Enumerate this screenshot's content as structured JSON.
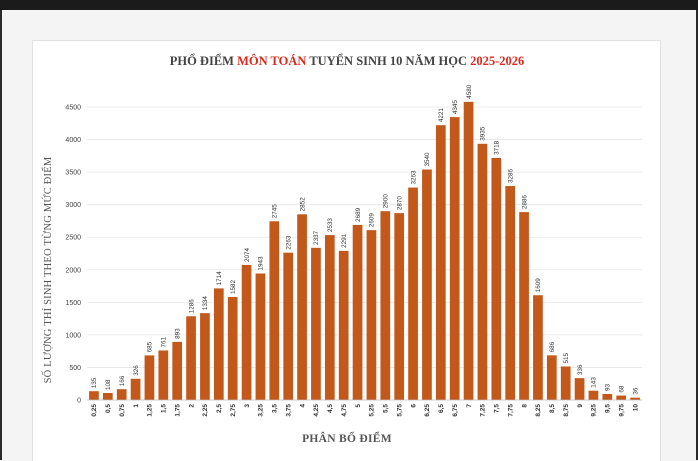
{
  "chart_data": {
    "type": "bar",
    "title_parts": [
      "PHỔ ĐIỂM ",
      "MÔN TOÁN",
      " TUYỂN SINH 10 NĂM HỌC ",
      "2025-2026"
    ],
    "xlabel": "PHÂN BỔ ĐIỂM",
    "ylabel": "SỐ LƯỢNG THÍ SINH THEO TỪNG MỨC ĐIỂM",
    "ylim": [
      0,
      4700
    ],
    "yticks": [
      0,
      500,
      1000,
      1500,
      2000,
      2500,
      3000,
      3500,
      4000,
      4500
    ],
    "grid": true,
    "categories": [
      "0,25",
      "0,5",
      "0,75",
      "1",
      "1,25",
      "1,5",
      "1,75",
      "2",
      "2,25",
      "2,5",
      "2,75",
      "3",
      "3,25",
      "3,5",
      "3,75",
      "4",
      "4,25",
      "4,5",
      "4,75",
      "5",
      "5,25",
      "5,5",
      "5,75",
      "6",
      "6,25",
      "6,5",
      "6,75",
      "7",
      "7,25",
      "7,5",
      "7,75",
      "8",
      "8,25",
      "8,5",
      "8,75",
      "9",
      "9,25",
      "9,5",
      "9,75",
      "10"
    ],
    "values": [
      135,
      108,
      166,
      326,
      685,
      761,
      893,
      1286,
      1334,
      1714,
      1582,
      2074,
      1943,
      2745,
      2263,
      2852,
      2337,
      2533,
      2291,
      2689,
      2609,
      2900,
      2870,
      3263,
      3540,
      4221,
      4345,
      4580,
      3935,
      3718,
      3286,
      2886,
      1609,
      686,
      515,
      336,
      143,
      93,
      68,
      36
    ],
    "colors": {
      "bar": "#c3581b",
      "title_highlight": "#d62a1e"
    }
  }
}
